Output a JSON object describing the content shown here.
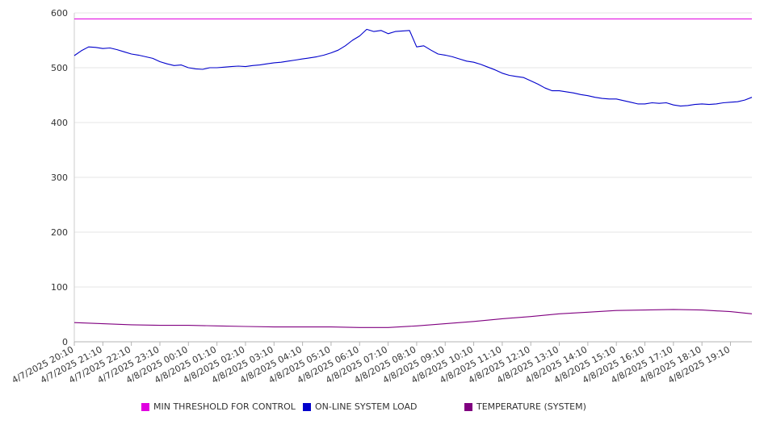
{
  "chart_data": {
    "type": "line",
    "title": "",
    "xlabel": "",
    "ylabel": "",
    "ylim": [
      0,
      600
    ],
    "yticks": [
      0,
      100,
      200,
      300,
      400,
      500,
      600
    ],
    "grid": "horizontal",
    "legend_position": "bottom",
    "x_range": [
      "4/7/2025 20:10",
      "4/8/2025 19:55"
    ],
    "xticks": [
      "4/7/2025 20:10",
      "4/7/2025 21:10",
      "4/7/2025 22:10",
      "4/7/2025 23:10",
      "4/8/2025 00:10",
      "4/8/2025 01:10",
      "4/8/2025 02:10",
      "4/8/2025 03:10",
      "4/8/2025 04:10",
      "4/8/2025 05:10",
      "4/8/2025 06:10",
      "4/8/2025 07:10",
      "4/8/2025 08:10",
      "4/8/2025 09:10",
      "4/8/2025 10:10",
      "4/8/2025 11:10",
      "4/8/2025 12:10",
      "4/8/2025 13:10",
      "4/8/2025 14:10",
      "4/8/2025 15:10",
      "4/8/2025 16:10",
      "4/8/2025 17:10",
      "4/8/2025 18:10",
      "4/8/2025 19:10"
    ],
    "series": [
      {
        "name": "MIN THRESHOLD FOR CONTROL",
        "color": "#e000e0",
        "x": [
          "4/7/2025 20:10",
          "4/8/2025 19:55"
        ],
        "y": [
          589,
          589
        ]
      },
      {
        "name": "ON-LINE SYSTEM LOAD",
        "color": "#0000cc",
        "x": [
          "4/7/2025 20:10",
          "4/7/2025 20:25",
          "4/7/2025 20:40",
          "4/7/2025 20:55",
          "4/7/2025 21:10",
          "4/7/2025 21:25",
          "4/7/2025 21:40",
          "4/7/2025 21:55",
          "4/7/2025 22:10",
          "4/7/2025 22:25",
          "4/7/2025 22:40",
          "4/7/2025 22:55",
          "4/7/2025 23:10",
          "4/7/2025 23:25",
          "4/7/2025 23:40",
          "4/7/2025 23:55",
          "4/8/2025 00:10",
          "4/8/2025 00:25",
          "4/8/2025 00:40",
          "4/8/2025 00:55",
          "4/8/2025 01:10",
          "4/8/2025 01:25",
          "4/8/2025 01:40",
          "4/8/2025 01:55",
          "4/8/2025 02:10",
          "4/8/2025 02:25",
          "4/8/2025 02:40",
          "4/8/2025 02:55",
          "4/8/2025 03:10",
          "4/8/2025 03:25",
          "4/8/2025 03:40",
          "4/8/2025 03:55",
          "4/8/2025 04:10",
          "4/8/2025 04:25",
          "4/8/2025 04:40",
          "4/8/2025 04:55",
          "4/8/2025 05:10",
          "4/8/2025 05:25",
          "4/8/2025 05:40",
          "4/8/2025 05:55",
          "4/8/2025 06:10",
          "4/8/2025 06:25",
          "4/8/2025 06:40",
          "4/8/2025 06:55",
          "4/8/2025 07:10",
          "4/8/2025 07:25",
          "4/8/2025 07:40",
          "4/8/2025 07:55",
          "4/8/2025 08:10",
          "4/8/2025 08:25",
          "4/8/2025 08:40",
          "4/8/2025 08:55",
          "4/8/2025 09:10",
          "4/8/2025 09:25",
          "4/8/2025 09:40",
          "4/8/2025 09:55",
          "4/8/2025 10:10",
          "4/8/2025 10:25",
          "4/8/2025 10:40",
          "4/8/2025 10:55",
          "4/8/2025 11:10",
          "4/8/2025 11:25",
          "4/8/2025 11:40",
          "4/8/2025 11:55",
          "4/8/2025 12:10",
          "4/8/2025 12:25",
          "4/8/2025 12:40",
          "4/8/2025 12:55",
          "4/8/2025 13:10",
          "4/8/2025 13:25",
          "4/8/2025 13:40",
          "4/8/2025 13:55",
          "4/8/2025 14:10",
          "4/8/2025 14:25",
          "4/8/2025 14:40",
          "4/8/2025 14:55",
          "4/8/2025 15:10",
          "4/8/2025 15:25",
          "4/8/2025 15:40",
          "4/8/2025 15:55",
          "4/8/2025 16:10",
          "4/8/2025 16:25",
          "4/8/2025 16:40",
          "4/8/2025 16:55",
          "4/8/2025 17:10",
          "4/8/2025 17:25",
          "4/8/2025 17:40",
          "4/8/2025 17:55",
          "4/8/2025 18:10",
          "4/8/2025 18:25",
          "4/8/2025 18:40",
          "4/8/2025 18:55",
          "4/8/2025 19:10",
          "4/8/2025 19:25",
          "4/8/2025 19:40",
          "4/8/2025 19:55"
        ],
        "y": [
          522,
          531,
          538,
          537,
          535,
          536,
          533,
          529,
          525,
          523,
          520,
          517,
          511,
          507,
          504,
          505,
          500,
          498,
          497,
          500,
          500,
          501,
          502,
          503,
          502,
          504,
          505,
          507,
          509,
          510,
          512,
          514,
          516,
          518,
          520,
          523,
          527,
          532,
          540,
          550,
          558,
          570,
          566,
          568,
          562,
          566,
          567,
          568,
          538,
          540,
          532,
          525,
          523,
          520,
          516,
          512,
          510,
          506,
          501,
          496,
          490,
          486,
          484,
          482,
          476,
          470,
          463,
          458,
          458,
          456,
          454,
          451,
          449,
          446,
          444,
          443,
          443,
          440,
          437,
          434,
          434,
          436,
          435,
          436,
          432,
          430,
          431,
          433,
          434,
          433,
          434,
          436,
          437,
          438,
          441,
          446
        ]
      },
      {
        "name": "TEMPERATURE (SYSTEM)",
        "color": "#800080",
        "x": [
          "4/7/2025 20:10",
          "4/7/2025 21:10",
          "4/7/2025 22:10",
          "4/7/2025 23:10",
          "4/8/2025 00:10",
          "4/8/2025 01:10",
          "4/8/2025 02:10",
          "4/8/2025 03:10",
          "4/8/2025 04:10",
          "4/8/2025 05:10",
          "4/8/2025 06:10",
          "4/8/2025 07:10",
          "4/8/2025 08:10",
          "4/8/2025 09:10",
          "4/8/2025 10:10",
          "4/8/2025 11:10",
          "4/8/2025 12:10",
          "4/8/2025 13:10",
          "4/8/2025 14:10",
          "4/8/2025 15:10",
          "4/8/2025 16:10",
          "4/8/2025 17:10",
          "4/8/2025 18:10",
          "4/8/2025 19:10",
          "4/8/2025 19:55"
        ],
        "y": [
          35,
          33,
          31,
          30,
          30,
          29,
          28,
          27,
          27,
          27,
          26,
          26,
          29,
          33,
          37,
          42,
          46,
          51,
          54,
          57,
          58,
          59,
          58,
          55,
          51
        ]
      }
    ]
  }
}
